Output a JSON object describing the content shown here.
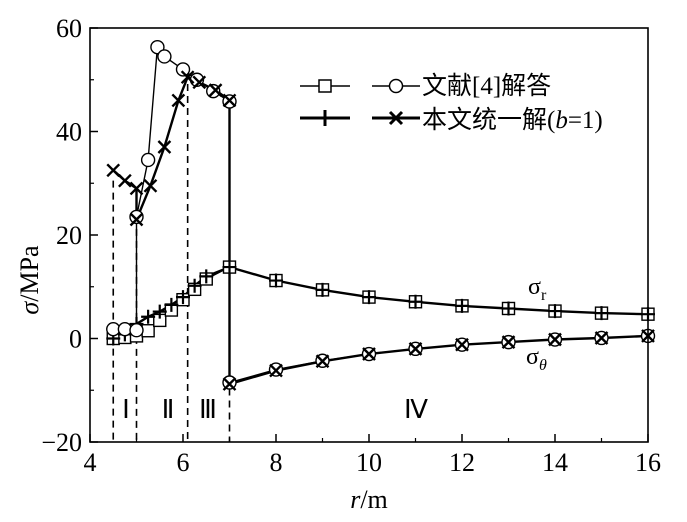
{
  "chart_data": {
    "type": "line",
    "xlabel_symbol": "r",
    "xlabel_unit": "/m",
    "ylabel_symbol": "σ",
    "ylabel_unit": "/MPa",
    "xlim": [
      4,
      16
    ],
    "ylim": [
      -20,
      60
    ],
    "xticks": [
      4,
      6,
      8,
      10,
      12,
      14,
      16
    ],
    "yticks": [
      -20,
      0,
      20,
      40,
      60
    ],
    "zones": [
      "Ⅰ",
      "Ⅱ",
      "Ⅲ",
      "Ⅳ"
    ],
    "boundaries": [
      4.5,
      5.0,
      6.1,
      7.0
    ],
    "legend": [
      "文献[4]解答",
      "本文统一解(b=1)"
    ],
    "legend_unified": {
      "prefix": "本文统一解(",
      "param": "b",
      "suffix": "=1)"
    },
    "curve_labels": [
      {
        "symbol": "σ",
        "sub": "r"
      },
      {
        "symbol": "σ",
        "sub": "θ"
      }
    ],
    "series": [
      {
        "name": "σr 文献[4]解答",
        "marker": "square",
        "x": [
          4.5,
          4.75,
          5.0,
          5.25,
          5.5,
          5.75,
          6.0,
          6.25,
          6.5,
          7.0,
          8,
          9,
          10,
          11,
          12,
          13,
          14,
          15,
          16
        ],
        "y": [
          0.0,
          0.2,
          0.5,
          1.5,
          3.5,
          5.5,
          7.5,
          9.5,
          11.5,
          13.8,
          11.2,
          9.4,
          8.0,
          7.1,
          6.3,
          5.8,
          5.3,
          4.9,
          4.7
        ]
      },
      {
        "name": "σθ 文献[4]解答",
        "marker": "circle",
        "x": [
          4.5,
          4.75,
          5.0,
          5.0,
          5.25,
          5.45,
          5.6,
          6.0,
          6.3,
          6.65,
          7.0,
          7.0,
          8,
          9,
          10,
          11,
          12,
          13,
          14,
          15,
          16
        ],
        "y": [
          1.8,
          1.8,
          1.6,
          23.5,
          34.5,
          56.3,
          54.5,
          52.0,
          50.0,
          47.8,
          45.8,
          -8.5,
          -6.0,
          -4.3,
          -3.0,
          -2.0,
          -1.2,
          -0.7,
          -0.2,
          0.1,
          0.5
        ]
      },
      {
        "name": "σr 本文统一解(b=1)",
        "marker": "plus",
        "x": [
          4.5,
          4.75,
          5.0,
          5.25,
          5.5,
          5.75,
          6.0,
          6.25,
          6.5,
          7.0,
          8,
          9,
          10,
          11,
          12,
          13,
          14,
          15,
          16
        ],
        "y": [
          0.0,
          0.8,
          2.8,
          4.2,
          5.2,
          6.5,
          8.0,
          10.2,
          12.0,
          13.8,
          11.2,
          9.4,
          8.0,
          7.1,
          6.3,
          5.8,
          5.3,
          4.9,
          4.7
        ]
      },
      {
        "name": "σθ 本文统一解(b=1)",
        "marker": "cross",
        "x": [
          4.5,
          4.75,
          5.0,
          5.0,
          5.3,
          5.6,
          5.9,
          6.1,
          6.35,
          6.7,
          7.0,
          7.0,
          8,
          9,
          10,
          11,
          12,
          13,
          14,
          15,
          16
        ],
        "y": [
          32.5,
          30.5,
          29.0,
          23.0,
          29.5,
          37.0,
          46.0,
          50.5,
          49.5,
          48.0,
          46.0,
          -8.8,
          -6.2,
          -4.4,
          -3.0,
          -2.0,
          -1.2,
          -0.7,
          -0.2,
          0.1,
          0.5
        ]
      }
    ]
  }
}
